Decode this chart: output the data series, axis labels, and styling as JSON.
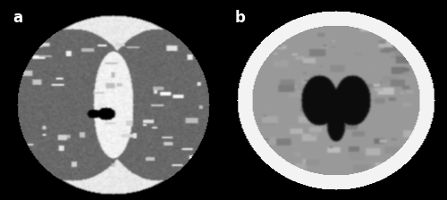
{
  "fig_width": 5.0,
  "fig_height": 2.24,
  "dpi": 100,
  "label_a": "a",
  "label_b": "b",
  "label_color": "white",
  "label_fontsize": 12,
  "label_fontweight": "bold",
  "background_color": "black",
  "panel_a_bg": "#c8c8c8",
  "panel_b_bg": "#505050"
}
